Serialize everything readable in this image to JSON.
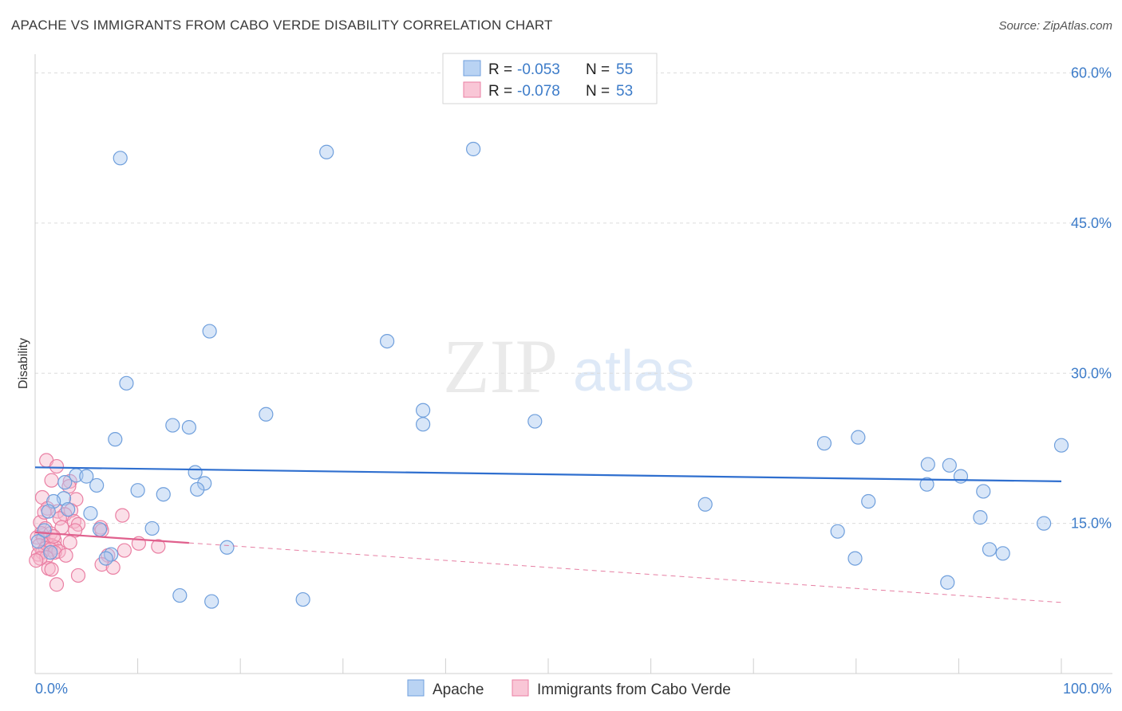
{
  "title": "APACHE VS IMMIGRANTS FROM CABO VERDE DISABILITY CORRELATION CHART",
  "source": "Source: ZipAtlas.com",
  "watermark": {
    "zip": "ZIP",
    "atlas": "atlas"
  },
  "legend": {
    "rows": [
      {
        "r_label": "R =",
        "r_value": "-0.053",
        "n_label": "N =",
        "n_value": "55"
      },
      {
        "r_label": "R =",
        "r_value": "-0.078",
        "n_label": "N =",
        "n_value": "53"
      }
    ]
  },
  "bottom_legend": [
    "Apache",
    "Immigrants from Cabo Verde"
  ],
  "colors": {
    "apache_fill": "#a9c8f0",
    "apache_stroke": "#6f9fdc",
    "apache_line": "#2f6fcf",
    "cabo_fill": "#f7b8cc",
    "cabo_stroke": "#ea7fa3",
    "cabo_line": "#e0608d",
    "tick_text": "#3d7cc9",
    "grid": "#dcdcdc"
  },
  "chart_data": {
    "type": "scatter",
    "title": "APACHE VS IMMIGRANTS FROM CABO VERDE DISABILITY CORRELATION CHART",
    "xlabel": "",
    "ylabel": "Disability",
    "xlim": [
      0,
      100
    ],
    "ylim": [
      0,
      61
    ],
    "x_tick_labels": [
      "0.0%",
      "100.0%"
    ],
    "y_ticks": [
      15,
      30,
      45,
      60
    ],
    "y_tick_labels": [
      "15.0%",
      "30.0%",
      "45.0%",
      "60.0%"
    ],
    "grid": true,
    "series": [
      {
        "name": "Apache",
        "r": -0.053,
        "n": 55,
        "trend": {
          "x": [
            0,
            100
          ],
          "y": [
            20.6,
            19.2
          ]
        },
        "points": [
          [
            8.3,
            51.5
          ],
          [
            28.4,
            52.1
          ],
          [
            42.7,
            52.4
          ],
          [
            17.0,
            34.2
          ],
          [
            34.3,
            33.2
          ],
          [
            8.9,
            29.0
          ],
          [
            37.8,
            26.3
          ],
          [
            22.5,
            25.9
          ],
          [
            13.4,
            24.8
          ],
          [
            15.0,
            24.6
          ],
          [
            37.8,
            24.9
          ],
          [
            7.8,
            23.4
          ],
          [
            48.7,
            25.2
          ],
          [
            80.2,
            23.6
          ],
          [
            76.9,
            23.0
          ],
          [
            100,
            22.8
          ],
          [
            15.6,
            20.1
          ],
          [
            4.0,
            19.8
          ],
          [
            5.0,
            19.7
          ],
          [
            2.9,
            19.1
          ],
          [
            6.0,
            18.8
          ],
          [
            16.5,
            19.0
          ],
          [
            15.8,
            18.4
          ],
          [
            10.0,
            18.3
          ],
          [
            12.5,
            17.9
          ],
          [
            2.8,
            17.5
          ],
          [
            1.8,
            17.2
          ],
          [
            1.3,
            16.2
          ],
          [
            87.0,
            20.9
          ],
          [
            89.1,
            20.8
          ],
          [
            90.2,
            19.7
          ],
          [
            86.9,
            18.9
          ],
          [
            92.4,
            18.2
          ],
          [
            81.2,
            17.2
          ],
          [
            65.3,
            16.9
          ],
          [
            3.2,
            16.4
          ],
          [
            5.4,
            16.0
          ],
          [
            92.1,
            15.6
          ],
          [
            98.3,
            15.0
          ],
          [
            6.3,
            14.4
          ],
          [
            11.4,
            14.5
          ],
          [
            0.9,
            14.3
          ],
          [
            78.2,
            14.2
          ],
          [
            18.7,
            12.6
          ],
          [
            1.5,
            12.1
          ],
          [
            7.4,
            11.9
          ],
          [
            6.9,
            11.5
          ],
          [
            93.0,
            12.4
          ],
          [
            94.3,
            12.0
          ],
          [
            79.9,
            11.5
          ],
          [
            88.9,
            9.1
          ],
          [
            14.1,
            7.8
          ],
          [
            17.2,
            7.2
          ],
          [
            26.1,
            7.4
          ],
          [
            0.3,
            13.2
          ]
        ]
      },
      {
        "name": "Immigrants from Cabo Verde",
        "r": -0.078,
        "n": 53,
        "trend": {
          "x": [
            0,
            100
          ],
          "y": [
            14.1,
            7.1
          ]
        },
        "trend_solid_until_x": 15,
        "points": [
          [
            1.1,
            21.3
          ],
          [
            2.1,
            20.7
          ],
          [
            1.6,
            19.3
          ],
          [
            3.4,
            19.2
          ],
          [
            3.3,
            18.7
          ],
          [
            0.7,
            17.6
          ],
          [
            4.0,
            17.4
          ],
          [
            1.2,
            16.5
          ],
          [
            2.2,
            16.2
          ],
          [
            3.5,
            16.3
          ],
          [
            2.9,
            15.9
          ],
          [
            8.5,
            15.8
          ],
          [
            2.4,
            15.5
          ],
          [
            3.8,
            15.2
          ],
          [
            0.5,
            15.1
          ],
          [
            4.2,
            14.9
          ],
          [
            1.0,
            14.5
          ],
          [
            3.9,
            14.3
          ],
          [
            6.4,
            14.6
          ],
          [
            6.5,
            14.3
          ],
          [
            0.6,
            14.0
          ],
          [
            1.5,
            14.0
          ],
          [
            0.2,
            13.6
          ],
          [
            0.8,
            13.5
          ],
          [
            1.9,
            13.3
          ],
          [
            3.4,
            13.1
          ],
          [
            10.1,
            13.0
          ],
          [
            1.2,
            12.9
          ],
          [
            0.4,
            12.8
          ],
          [
            1.6,
            12.8
          ],
          [
            12.0,
            12.7
          ],
          [
            2.0,
            12.6
          ],
          [
            1.0,
            12.5
          ],
          [
            1.5,
            12.4
          ],
          [
            2.3,
            12.2
          ],
          [
            8.7,
            12.3
          ],
          [
            0.7,
            12.1
          ],
          [
            1.9,
            12.1
          ],
          [
            0.3,
            11.9
          ],
          [
            3.0,
            11.8
          ],
          [
            7.1,
            11.8
          ],
          [
            1.1,
            11.6
          ],
          [
            0.5,
            11.5
          ],
          [
            0.1,
            11.3
          ],
          [
            6.5,
            10.9
          ],
          [
            7.6,
            10.6
          ],
          [
            1.3,
            10.5
          ],
          [
            1.6,
            10.4
          ],
          [
            4.2,
            9.8
          ],
          [
            2.1,
            8.9
          ],
          [
            0.9,
            16.1
          ],
          [
            2.6,
            14.6
          ],
          [
            1.8,
            13.7
          ]
        ]
      }
    ]
  }
}
